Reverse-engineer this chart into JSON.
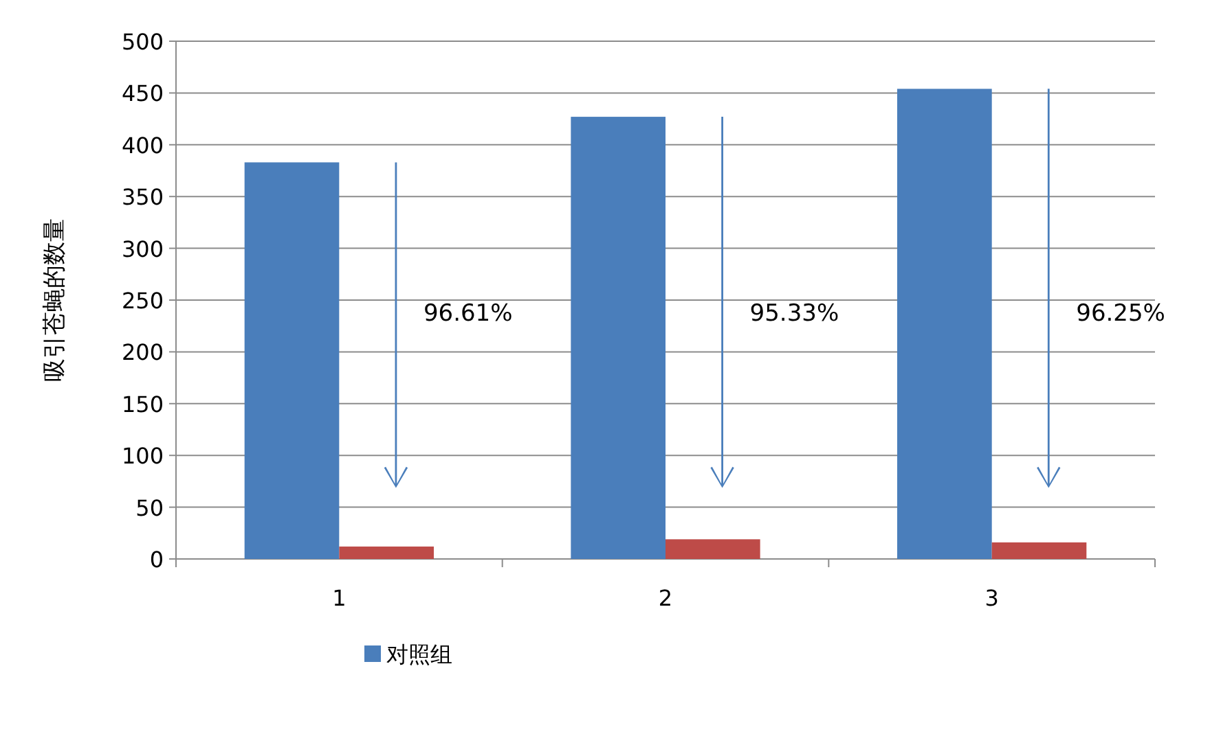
{
  "chart_data": {
    "type": "bar",
    "ylabel": "吸引苍蝇的数量",
    "categories": [
      "1",
      "2",
      "3"
    ],
    "series": [
      {
        "name": "对照组",
        "color": "#4a7ebb",
        "values": [
          383,
          427,
          454
        ]
      },
      {
        "color": "#be4b48",
        "values": [
          12,
          19,
          16
        ]
      }
    ],
    "ylim": [
      0,
      500
    ],
    "yticks": [
      0,
      50,
      100,
      150,
      200,
      250,
      300,
      350,
      400,
      450,
      500
    ],
    "grid": "y",
    "legend": "bottom",
    "annotations": [
      "96.61%",
      "95.33%",
      "96.25%"
    ]
  }
}
